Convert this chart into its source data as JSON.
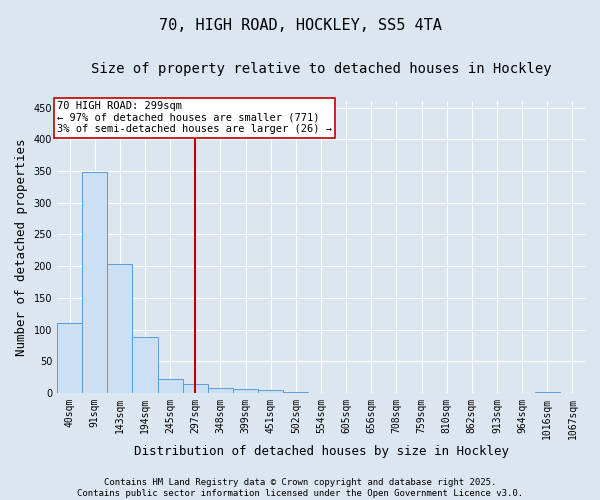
{
  "title_line1": "70, HIGH ROAD, HOCKLEY, SS5 4TA",
  "title_line2": "Size of property relative to detached houses in Hockley",
  "xlabel": "Distribution of detached houses by size in Hockley",
  "ylabel": "Number of detached properties",
  "categories": [
    "40sqm",
    "91sqm",
    "143sqm",
    "194sqm",
    "245sqm",
    "297sqm",
    "348sqm",
    "399sqm",
    "451sqm",
    "502sqm",
    "554sqm",
    "605sqm",
    "656sqm",
    "708sqm",
    "759sqm",
    "810sqm",
    "862sqm",
    "913sqm",
    "964sqm",
    "1016sqm",
    "1067sqm"
  ],
  "values": [
    110,
    348,
    204,
    88,
    22,
    14,
    8,
    7,
    5,
    1,
    0,
    0,
    0,
    0,
    0,
    0,
    0,
    0,
    0,
    2,
    0
  ],
  "bar_color": "#cce0f5",
  "bar_edge_color": "#5b9bd5",
  "vline_x_index": 5,
  "vline_color": "#c00000",
  "annotation_text": "70 HIGH ROAD: 299sqm\n← 97% of detached houses are smaller (771)\n3% of semi-detached houses are larger (26) →",
  "annotation_box_edgecolor": "#c00000",
  "ylim": [
    0,
    460
  ],
  "yticks": [
    0,
    50,
    100,
    150,
    200,
    250,
    300,
    350,
    400,
    450
  ],
  "background_color": "#dce6f1",
  "grid_color": "#ffffff",
  "footer_line1": "Contains HM Land Registry data © Crown copyright and database right 2025.",
  "footer_line2": "Contains public sector information licensed under the Open Government Licence v3.0.",
  "title_fontsize": 11,
  "subtitle_fontsize": 10,
  "xlabel_fontsize": 9,
  "ylabel_fontsize": 9,
  "tick_fontsize": 7,
  "annot_fontsize": 7.5,
  "footer_fontsize": 6.5
}
